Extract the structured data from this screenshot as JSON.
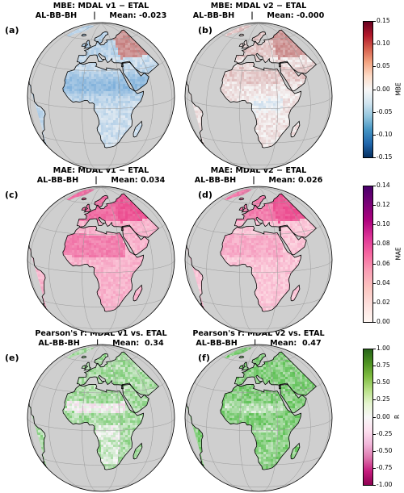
{
  "panels": [
    {
      "id": "a",
      "label": "(a)",
      "title1": "MBE: MDAL v1 − ETAL",
      "title2": "AL-BB-BH      |     Mean: -0.023",
      "metric": "mbe",
      "variant": 1
    },
    {
      "id": "b",
      "label": "(b)",
      "title1": "MBE: MDAL v2 − ETAL",
      "title2": "AL-BB-BH      |     Mean: -0.000",
      "metric": "mbe",
      "variant": 2
    },
    {
      "id": "c",
      "label": "(c)",
      "title1": "MAE: MDAL v1 − ETAL",
      "title2": "AL-BB-BH      |     Mean: 0.034",
      "metric": "mae",
      "variant": 1
    },
    {
      "id": "d",
      "label": "(d)",
      "title1": "MAE: MDAL v2 − ETAL",
      "title2": "AL-BB-BH      |     Mean: 0.026",
      "metric": "mae",
      "variant": 2
    },
    {
      "id": "e",
      "label": "(e)",
      "title1": "Pearson's r: MDAL v1 vs. ETAL",
      "title2": "AL-BB-BH      |     Mean:  0.34",
      "metric": "r",
      "variant": 1
    },
    {
      "id": "f",
      "label": "(f)",
      "title1": "Pearson's r: MDAL v2 vs. ETAL",
      "title2": "AL-BB-BH      |     Mean:  0.47",
      "metric": "r",
      "variant": 2
    }
  ],
  "colorbars": [
    {
      "label": "MBE",
      "ticks": [
        "0.15",
        "0.10",
        "0.05",
        "0.00",
        "-0.05",
        "-0.10",
        "-0.15"
      ],
      "gradient": [
        "#67001f",
        "#b2182b",
        "#d6604d",
        "#f4a582",
        "#fddbc7",
        "#f7f7f7",
        "#d1e5f0",
        "#92c5de",
        "#4393c3",
        "#2166ac",
        "#053061"
      ]
    },
    {
      "label": "MAE",
      "ticks": [
        "0.14",
        "0.12",
        "0.10",
        "0.08",
        "0.06",
        "0.04",
        "0.02",
        "0.00"
      ],
      "gradient": [
        "#49006a",
        "#7a0177",
        "#ae017e",
        "#dd3497",
        "#f768a1",
        "#fa9fb5",
        "#fcc5c0",
        "#fde0dd",
        "#fff7f3"
      ]
    },
    {
      "label": "R",
      "ticks": [
        "1.00",
        "0.75",
        "0.50",
        "0.25",
        "0.00",
        "-0.25",
        "-0.50",
        "-0.75",
        "-1.00"
      ],
      "gradient": [
        "#276419",
        "#4d9221",
        "#7fbc41",
        "#b8e186",
        "#e6f5d0",
        "#f7f7f7",
        "#fde0ef",
        "#f1b6da",
        "#de77ae",
        "#c51b7d",
        "#8e0152"
      ]
    }
  ],
  "colors": {
    "ocean": "#cfcfcf",
    "grid": "#9a9a9a",
    "coast": "#000000"
  }
}
